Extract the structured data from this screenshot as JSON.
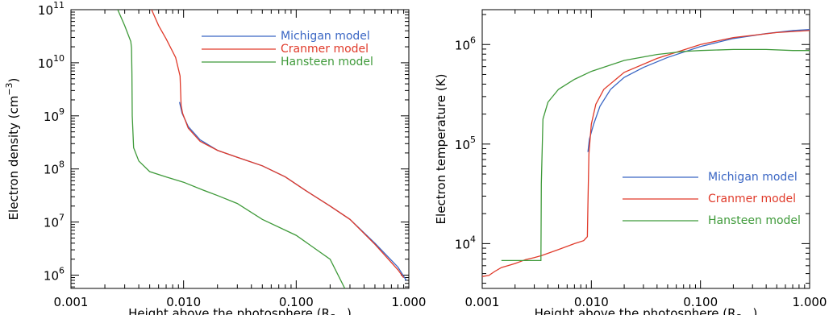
{
  "chart_data": [
    {
      "type": "line",
      "xlabel": "Height above the photosphere (R",
      "xlabel_sub": "Sun",
      "xlabel_close": ")",
      "ylabel": "Electron density (cm",
      "ylabel_sup": "−3",
      "ylabel_close": ")",
      "x_scale": "log",
      "y_scale": "log",
      "xlim": [
        0.001,
        1.0
      ],
      "ylim_log10": [
        5.75,
        11
      ],
      "xtick_labels": [
        "0.001",
        "0.010",
        "0.100",
        "1.000"
      ],
      "ytick_labels": [
        {
          "base": "10",
          "exp": "6"
        },
        {
          "base": "10",
          "exp": "7"
        },
        {
          "base": "10",
          "exp": "8"
        },
        {
          "base": "10",
          "exp": "9"
        },
        {
          "base": "10",
          "exp": "10"
        },
        {
          "base": "10",
          "exp": "11"
        }
      ],
      "legend_position": "top-right",
      "series": [
        {
          "name": "Michigan model",
          "color": "#3a66c4",
          "points": [
            [
              0.0092,
              9.26
            ],
            [
              0.0097,
              9.05
            ],
            [
              0.011,
              8.8
            ],
            [
              0.014,
              8.55
            ],
            [
              0.02,
              8.35
            ],
            [
              0.03,
              8.22
            ],
            [
              0.05,
              8.06
            ],
            [
              0.08,
              7.85
            ],
            [
              0.12,
              7.6
            ],
            [
              0.2,
              7.3
            ],
            [
              0.3,
              7.05
            ],
            [
              0.5,
              6.6
            ],
            [
              0.8,
              6.15
            ],
            [
              0.95,
              5.9
            ]
          ]
        },
        {
          "name": "Cranmer model",
          "color": "#e03a2a",
          "points": [
            [
              0.0052,
              11.0
            ],
            [
              0.006,
              10.7
            ],
            [
              0.007,
              10.45
            ],
            [
              0.0085,
              10.1
            ],
            [
              0.0093,
              9.75
            ],
            [
              0.0095,
              9.2
            ],
            [
              0.0098,
              9.05
            ],
            [
              0.011,
              8.77
            ],
            [
              0.014,
              8.52
            ],
            [
              0.02,
              8.35
            ],
            [
              0.03,
              8.22
            ],
            [
              0.05,
              8.06
            ],
            [
              0.08,
              7.85
            ],
            [
              0.12,
              7.6
            ],
            [
              0.2,
              7.3
            ],
            [
              0.3,
              7.05
            ],
            [
              0.5,
              6.58
            ],
            [
              0.8,
              6.1
            ],
            [
              0.9,
              5.95
            ]
          ]
        },
        {
          "name": "Hansteen model",
          "color": "#3f9a3a",
          "points": [
            [
              0.0026,
              11.0
            ],
            [
              0.003,
              10.7
            ],
            [
              0.0034,
              10.4
            ],
            [
              0.00345,
              10.28
            ],
            [
              0.00348,
              9.8
            ],
            [
              0.0035,
              9.0
            ],
            [
              0.0036,
              8.4
            ],
            [
              0.004,
              8.15
            ],
            [
              0.005,
              7.95
            ],
            [
              0.007,
              7.85
            ],
            [
              0.01,
              7.75
            ],
            [
              0.015,
              7.6
            ],
            [
              0.02,
              7.5
            ],
            [
              0.03,
              7.35
            ],
            [
              0.05,
              7.05
            ],
            [
              0.1,
              6.75
            ],
            [
              0.2,
              6.3
            ],
            [
              0.27,
              5.75
            ]
          ]
        }
      ]
    },
    {
      "type": "line",
      "xlabel": "Height above the photosphere (R",
      "xlabel_sub": "Sun",
      "xlabel_close": ")",
      "ylabel": "Electron temperature (K)",
      "x_scale": "log",
      "y_scale": "log",
      "xlim": [
        0.001,
        1.0
      ],
      "ylim_log10": [
        3.55,
        6.35
      ],
      "xtick_labels": [
        "0.001",
        "0.010",
        "0.100",
        "1.000"
      ],
      "ytick_labels": [
        {
          "base": "10",
          "exp": "4"
        },
        {
          "base": "10",
          "exp": "5"
        },
        {
          "base": "10",
          "exp": "6"
        }
      ],
      "legend_position": "bottom-right",
      "series": [
        {
          "name": "Michigan model",
          "color": "#3a66c4",
          "points": [
            [
              0.0093,
              4.92
            ],
            [
              0.0096,
              5.05
            ],
            [
              0.0105,
              5.2
            ],
            [
              0.012,
              5.38
            ],
            [
              0.015,
              5.55
            ],
            [
              0.02,
              5.67
            ],
            [
              0.03,
              5.77
            ],
            [
              0.05,
              5.87
            ],
            [
              0.1,
              5.98
            ],
            [
              0.2,
              6.06
            ],
            [
              0.4,
              6.11
            ],
            [
              0.7,
              6.14
            ],
            [
              1.0,
              6.15
            ]
          ]
        },
        {
          "name": "Cranmer model",
          "color": "#e03a2a",
          "points": [
            [
              0.001,
              3.67
            ],
            [
              0.00115,
              3.68
            ],
            [
              0.0013,
              3.72
            ],
            [
              0.0015,
              3.76
            ],
            [
              0.002,
              3.8
            ],
            [
              0.0025,
              3.84
            ],
            [
              0.003,
              3.86
            ],
            [
              0.0035,
              3.88
            ],
            [
              0.005,
              3.94
            ],
            [
              0.007,
              4.0
            ],
            [
              0.0085,
              4.03
            ],
            [
              0.0092,
              4.07
            ],
            [
              0.0093,
              4.4
            ],
            [
              0.0095,
              4.9
            ],
            [
              0.01,
              5.2
            ],
            [
              0.011,
              5.4
            ],
            [
              0.013,
              5.55
            ],
            [
              0.02,
              5.72
            ],
            [
              0.04,
              5.86
            ],
            [
              0.1,
              6.0
            ],
            [
              0.2,
              6.07
            ],
            [
              0.5,
              6.12
            ],
            [
              1.0,
              6.14
            ]
          ]
        },
        {
          "name": "Hansteen model",
          "color": "#3f9a3a",
          "points": [
            [
              0.0015,
              3.83
            ],
            [
              0.002,
              3.83
            ],
            [
              0.0025,
              3.83
            ],
            [
              0.003,
              3.83
            ],
            [
              0.00345,
              3.83
            ],
            [
              0.00348,
              4.6
            ],
            [
              0.0036,
              5.25
            ],
            [
              0.004,
              5.42
            ],
            [
              0.005,
              5.55
            ],
            [
              0.007,
              5.65
            ],
            [
              0.01,
              5.73
            ],
            [
              0.02,
              5.84
            ],
            [
              0.04,
              5.9
            ],
            [
              0.07,
              5.93
            ],
            [
              0.1,
              5.94
            ],
            [
              0.2,
              5.95
            ],
            [
              0.4,
              5.95
            ],
            [
              0.7,
              5.94
            ],
            [
              1.0,
              5.94
            ]
          ]
        }
      ]
    }
  ]
}
